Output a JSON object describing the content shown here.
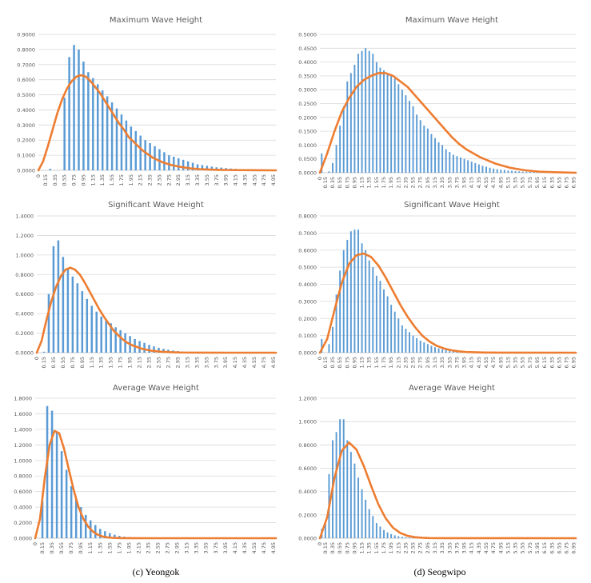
{
  "captions": [
    "(c) Yeongok",
    "(d) Seogwipo"
  ],
  "colors": {
    "bars": "#5B9BD5",
    "curve": "#ED7D31",
    "grid": "#D9D9D9",
    "text": "#595959"
  },
  "chart_data": [
    {
      "type": "bar",
      "site": "Yeongok",
      "title": "Maximum Wave Height",
      "ylim": [
        0,
        0.9
      ],
      "ytick_step": 0.1,
      "bin_start": 0.05,
      "bin_step": 0.1,
      "bar_values": [
        0,
        0,
        0.01,
        0,
        0,
        0.48,
        0.75,
        0.83,
        0.8,
        0.72,
        0.65,
        0.61,
        0.57,
        0.53,
        0.49,
        0.45,
        0.41,
        0.37,
        0.33,
        0.29,
        0.26,
        0.23,
        0.2,
        0.18,
        0.16,
        0.14,
        0.12,
        0.1,
        0.09,
        0.08,
        0.07,
        0.06,
        0.05,
        0.04,
        0.035,
        0.03,
        0.025,
        0.02,
        0.018,
        0.015,
        0.012,
        0.01,
        0.008,
        0.006,
        0.005,
        0.004,
        0.003,
        0.002,
        0.002,
        0.001
      ],
      "curve_x": [
        0,
        0.1,
        0.2,
        0.3,
        0.4,
        0.5,
        0.6,
        0.7,
        0.8,
        0.9,
        1.0,
        1.1,
        1.2,
        1.3,
        1.4,
        1.5,
        1.6,
        1.7,
        1.8,
        1.9,
        2.0,
        2.2,
        2.4,
        2.6,
        2.8,
        3.0,
        3.2,
        3.4,
        3.6,
        3.8,
        4.0,
        4.5,
        5.0
      ],
      "curve_y": [
        0,
        0.06,
        0.16,
        0.27,
        0.38,
        0.47,
        0.54,
        0.59,
        0.62,
        0.63,
        0.62,
        0.59,
        0.55,
        0.51,
        0.46,
        0.41,
        0.36,
        0.31,
        0.27,
        0.22,
        0.19,
        0.13,
        0.085,
        0.055,
        0.035,
        0.022,
        0.013,
        0.008,
        0.005,
        0.003,
        0.002,
        0.001,
        0
      ],
      "xlim": [
        0,
        5.0
      ],
      "xtick_labels": [
        "0",
        "0.15",
        "0.35",
        "0.55",
        "0.75",
        "0.95",
        "1.15",
        "1.35",
        "1.55",
        "1.75",
        "1.95",
        "2.15",
        "2.35",
        "2.55",
        "2.75",
        "2.95",
        "3.15",
        "3.35",
        "3.55",
        "3.75",
        "3.95",
        "4.15",
        "4.35",
        "4.55",
        "4.75",
        "4.95"
      ]
    },
    {
      "type": "bar",
      "site": "Seogwipo",
      "title": "Maximum Wave Height",
      "ylim": [
        0,
        0.5
      ],
      "ytick_step": 0.05,
      "bin_start": 0.05,
      "bin_step": 0.1,
      "bar_values": [
        0.07,
        0,
        0.005,
        0.035,
        0.1,
        0.17,
        0.24,
        0.33,
        0.36,
        0.39,
        0.43,
        0.44,
        0.45,
        0.44,
        0.43,
        0.4,
        0.38,
        0.37,
        0.36,
        0.35,
        0.34,
        0.32,
        0.3,
        0.28,
        0.26,
        0.24,
        0.21,
        0.19,
        0.17,
        0.16,
        0.14,
        0.125,
        0.11,
        0.1,
        0.085,
        0.075,
        0.065,
        0.06,
        0.055,
        0.05,
        0.045,
        0.04,
        0.035,
        0.03,
        0.025,
        0.022,
        0.018,
        0.015,
        0.013,
        0.011,
        0.01,
        0.008,
        0.007,
        0.006,
        0.005,
        0.004,
        0.0035,
        0.003,
        0.0025,
        0.002,
        0.002,
        0.0015,
        0.0012,
        0.001,
        0.001,
        0.001,
        0.0008,
        0.0008,
        0.0005,
        0.0005
      ],
      "curve_x": [
        0,
        0.2,
        0.4,
        0.6,
        0.8,
        1.0,
        1.2,
        1.4,
        1.6,
        1.8,
        2.0,
        2.2,
        2.4,
        2.6,
        2.8,
        3.0,
        3.2,
        3.4,
        3.6,
        3.8,
        4.0,
        4.4,
        4.8,
        5.2,
        5.6,
        6.0,
        6.4,
        7.0
      ],
      "curve_y": [
        0,
        0.07,
        0.15,
        0.22,
        0.27,
        0.31,
        0.335,
        0.35,
        0.36,
        0.36,
        0.35,
        0.33,
        0.31,
        0.28,
        0.25,
        0.22,
        0.19,
        0.16,
        0.13,
        0.105,
        0.085,
        0.055,
        0.033,
        0.018,
        0.009,
        0.004,
        0.002,
        0
      ],
      "xlim": [
        0,
        7.0
      ],
      "xtick_labels": [
        "0",
        "0.15",
        "0.35",
        "0.55",
        "0.75",
        "0.95",
        "1.15",
        "1.35",
        "1.55",
        "1.75",
        "1.95",
        "2.15",
        "2.35",
        "2.55",
        "2.75",
        "2.95",
        "3.15",
        "3.35",
        "3.55",
        "3.75",
        "3.95",
        "4.15",
        "4.35",
        "4.55",
        "4.75",
        "4.95",
        "5.15",
        "5.35",
        "5.55",
        "5.75",
        "5.95",
        "6.15",
        "6.35",
        "6.55",
        "6.75",
        "6.95"
      ]
    },
    {
      "type": "bar",
      "site": "Yeongok",
      "title": "Significant Wave Height",
      "ylim": [
        0,
        1.4
      ],
      "ytick_step": 0.2,
      "bin_start": 0.05,
      "bin_step": 0.1,
      "bar_values": [
        0,
        0.01,
        0.6,
        1.09,
        1.15,
        0.98,
        0.86,
        0.78,
        0.71,
        0.63,
        0.55,
        0.48,
        0.42,
        0.37,
        0.33,
        0.3,
        0.26,
        0.23,
        0.2,
        0.17,
        0.14,
        0.12,
        0.1,
        0.08,
        0.065,
        0.05,
        0.04,
        0.03,
        0.022,
        0.016,
        0.012,
        0.009,
        0.006,
        0.004,
        0.003,
        0.002,
        0.0015,
        0.001,
        0.001,
        0.0008,
        0.0006,
        0.0005,
        0.0004,
        0.0003,
        0.0002,
        0.0002,
        0.0001,
        0.0001,
        0.0001,
        0.0001
      ],
      "curve_x": [
        0,
        0.1,
        0.2,
        0.3,
        0.4,
        0.5,
        0.6,
        0.7,
        0.8,
        0.9,
        1.0,
        1.1,
        1.2,
        1.3,
        1.4,
        1.5,
        1.6,
        1.7,
        1.8,
        1.9,
        2.0,
        2.2,
        2.4,
        2.6,
        2.8,
        3.0,
        3.5,
        4.0,
        5.0
      ],
      "curve_y": [
        0,
        0.12,
        0.33,
        0.52,
        0.67,
        0.78,
        0.85,
        0.87,
        0.85,
        0.8,
        0.72,
        0.63,
        0.54,
        0.45,
        0.37,
        0.3,
        0.23,
        0.18,
        0.135,
        0.1,
        0.075,
        0.04,
        0.02,
        0.01,
        0.005,
        0.002,
        0.0005,
        0.0001,
        0
      ],
      "xlim": [
        0,
        5.0
      ],
      "xtick_labels": [
        "0",
        "0.15",
        "0.35",
        "0.55",
        "0.75",
        "0.95",
        "1.15",
        "1.35",
        "1.55",
        "1.75",
        "1.95",
        "2.15",
        "2.35",
        "2.55",
        "2.75",
        "2.95",
        "3.15",
        "3.35",
        "3.55",
        "3.75",
        "3.95",
        "4.15",
        "4.35",
        "4.55",
        "4.75",
        "4.95"
      ]
    },
    {
      "type": "bar",
      "site": "Seogwipo",
      "title": "Significant Wave Height",
      "ylim": [
        0,
        0.8
      ],
      "ytick_step": 0.1,
      "bin_start": 0.05,
      "bin_step": 0.1,
      "bar_values": [
        0.08,
        0,
        0.05,
        0.15,
        0.34,
        0.48,
        0.6,
        0.66,
        0.71,
        0.72,
        0.72,
        0.64,
        0.6,
        0.54,
        0.5,
        0.45,
        0.42,
        0.37,
        0.33,
        0.28,
        0.24,
        0.2,
        0.16,
        0.14,
        0.12,
        0.1,
        0.085,
        0.07,
        0.06,
        0.05,
        0.04,
        0.032,
        0.025,
        0.02,
        0.016,
        0.012,
        0.009,
        0.007,
        0.005,
        0.004,
        0.003,
        0.0025,
        0.002,
        0.0015,
        0.001,
        0.001,
        0.0008,
        0.0006,
        0.0005,
        0.0004,
        0.0003,
        0.0003,
        0.0002,
        0.0002,
        0.0001,
        0.0001,
        0.0001,
        0.0001,
        0.0001,
        0.0001,
        0.0001,
        0.0001,
        0.0001,
        0.0001,
        0.0001,
        0.0001,
        0.0001,
        0.0001,
        0.0001,
        0.0001
      ],
      "curve_x": [
        0,
        0.2,
        0.4,
        0.6,
        0.8,
        1.0,
        1.2,
        1.4,
        1.6,
        1.8,
        2.0,
        2.2,
        2.4,
        2.6,
        2.8,
        3.0,
        3.2,
        3.4,
        3.6,
        3.8,
        4.0,
        4.5,
        5.0,
        7.0
      ],
      "curve_y": [
        0,
        0.08,
        0.25,
        0.41,
        0.52,
        0.57,
        0.58,
        0.56,
        0.51,
        0.44,
        0.36,
        0.28,
        0.21,
        0.15,
        0.1,
        0.065,
        0.04,
        0.024,
        0.014,
        0.008,
        0.004,
        0.001,
        0.0002,
        0
      ],
      "xlim": [
        0,
        7.0
      ],
      "xtick_labels": [
        "0",
        "0.15",
        "0.35",
        "0.55",
        "0.75",
        "0.95",
        "1.15",
        "1.35",
        "1.55",
        "1.75",
        "1.95",
        "2.15",
        "2.35",
        "2.55",
        "2.75",
        "2.95",
        "3.15",
        "3.35",
        "3.55",
        "3.75",
        "3.95",
        "4.15",
        "4.35",
        "4.55",
        "4.75",
        "4.95",
        "5.15",
        "5.35",
        "5.55",
        "5.75",
        "5.95",
        "6.15",
        "6.35",
        "6.55",
        "6.75",
        "6.95"
      ]
    },
    {
      "type": "bar",
      "site": "Yeongok",
      "title": "Average Wave Height",
      "ylim": [
        0,
        1.8
      ],
      "ytick_step": 0.2,
      "bin_start": 0.05,
      "bin_step": 0.1,
      "bar_values": [
        0,
        0.49,
        1.7,
        1.64,
        1.36,
        1.12,
        0.88,
        0.67,
        0.5,
        0.4,
        0.3,
        0.23,
        0.17,
        0.12,
        0.09,
        0.065,
        0.045,
        0.03,
        0.02,
        0.015,
        0.01,
        0.007,
        0.005,
        0.004,
        0.003,
        0.002,
        0.0015,
        0.001,
        0.0008,
        0.0006,
        0.0005,
        0.0004,
        0.0003,
        0.0002,
        0.0002,
        0.0001,
        0.0001,
        0.0001,
        0.0001,
        0.0001,
        0.0001,
        0.0001,
        0.0001,
        0.0001,
        0.0001,
        0.0001,
        0.0001,
        0.0001,
        0.0001,
        0.0001
      ],
      "curve_x": [
        0,
        0.1,
        0.2,
        0.3,
        0.4,
        0.5,
        0.6,
        0.7,
        0.8,
        0.9,
        1.0,
        1.1,
        1.2,
        1.3,
        1.4,
        1.5,
        1.6,
        1.8,
        2.0,
        2.5,
        5.0
      ],
      "curve_y": [
        0,
        0.25,
        0.78,
        1.2,
        1.38,
        1.35,
        1.15,
        0.88,
        0.62,
        0.4,
        0.25,
        0.15,
        0.085,
        0.045,
        0.022,
        0.011,
        0.005,
        0.001,
        0.0002,
        0,
        0
      ],
      "xlim": [
        0,
        5.0
      ],
      "xtick_labels": [
        "0",
        "0.15",
        "0.35",
        "0.55",
        "0.75",
        "0.95",
        "1.15",
        "1.35",
        "1.55",
        "1.75",
        "1.95",
        "2.15",
        "2.35",
        "2.55",
        "2.75",
        "2.95",
        "3.15",
        "3.35",
        "3.55",
        "3.75",
        "3.95",
        "4.15",
        "4.35",
        "4.55",
        "4.75",
        "4.95"
      ]
    },
    {
      "type": "bar",
      "site": "Seogwipo",
      "title": "Average Wave Height",
      "ylim": [
        0,
        1.2
      ],
      "ytick_step": 0.2,
      "bin_start": 0.05,
      "bin_step": 0.1,
      "bar_values": [
        0.08,
        0.14,
        0.55,
        0.84,
        0.91,
        1.02,
        1.02,
        0.84,
        0.74,
        0.64,
        0.52,
        0.42,
        0.33,
        0.25,
        0.19,
        0.13,
        0.1,
        0.07,
        0.05,
        0.035,
        0.025,
        0.017,
        0.012,
        0.008,
        0.005,
        0.004,
        0.003,
        0.002,
        0.0015,
        0.001,
        0.0008,
        0.0006,
        0.0005,
        0.0004,
        0.0003,
        0.0002,
        0.0002,
        0.0001,
        0.0001,
        0.0001,
        0.0001,
        0.0001,
        0.0001,
        0.0001,
        0.0001,
        0.0001,
        0.0001,
        0.0001,
        0.0001,
        0.0001,
        0.0001,
        0.0001,
        0.0001,
        0.0001,
        0.0001,
        0.0001,
        0.0001,
        0.0001,
        0.0001,
        0.0001,
        0.0001,
        0.0001,
        0.0001,
        0.0001,
        0.0001,
        0.0001,
        0.0001,
        0.0001,
        0.0001,
        0.0001
      ],
      "curve_x": [
        0,
        0.2,
        0.4,
        0.6,
        0.8,
        1.0,
        1.2,
        1.4,
        1.6,
        1.8,
        2.0,
        2.2,
        2.4,
        2.6,
        2.8,
        3.0,
        3.5,
        7.0
      ],
      "curve_y": [
        0,
        0.18,
        0.52,
        0.75,
        0.82,
        0.76,
        0.62,
        0.45,
        0.29,
        0.17,
        0.09,
        0.045,
        0.02,
        0.009,
        0.004,
        0.0015,
        0.0002,
        0
      ],
      "xlim": [
        0,
        7.0
      ],
      "xtick_labels": [
        "0",
        "0.15",
        "0.35",
        "0.55",
        "0.75",
        "0.95",
        "1.15",
        "1.35",
        "1.55",
        "1.75",
        "1.95",
        "2.15",
        "2.35",
        "2.55",
        "2.75",
        "2.95",
        "3.15",
        "3.35",
        "3.55",
        "3.75",
        "3.95",
        "4.15",
        "4.35",
        "4.55",
        "4.75",
        "4.95",
        "5.15",
        "5.35",
        "5.55",
        "5.75",
        "5.95",
        "6.15",
        "6.35",
        "6.55",
        "6.75",
        "6.95"
      ]
    }
  ]
}
